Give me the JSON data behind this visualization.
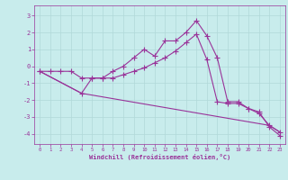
{
  "xlabel": "Windchill (Refroidissement éolien,°C)",
  "bg_color": "#c8ecec",
  "grid_color": "#aadddd",
  "line_color": "#993399",
  "xlim": [
    -0.5,
    23.5
  ],
  "ylim": [
    -4.6,
    3.6
  ],
  "yticks": [
    -4,
    -3,
    -2,
    -1,
    0,
    1,
    2,
    3
  ],
  "xticks": [
    0,
    1,
    2,
    3,
    4,
    5,
    6,
    7,
    8,
    9,
    10,
    11,
    12,
    13,
    14,
    15,
    16,
    17,
    18,
    19,
    20,
    21,
    22,
    23
  ],
  "line1_x": [
    0,
    1,
    2,
    3,
    4,
    5,
    6,
    7,
    8,
    9,
    10,
    11,
    12,
    13,
    14,
    15,
    16,
    17,
    18,
    19,
    20,
    21,
    22,
    23
  ],
  "line1_y": [
    -0.3,
    -0.3,
    -0.3,
    -0.3,
    -0.7,
    -0.7,
    -0.7,
    -0.3,
    0.0,
    0.5,
    1.0,
    0.6,
    1.5,
    1.5,
    2.0,
    2.7,
    1.8,
    0.5,
    -2.1,
    -2.1,
    -2.5,
    -2.7,
    -3.6,
    -4.1
  ],
  "line2_x": [
    0,
    4,
    5,
    6,
    7,
    8,
    9,
    10,
    11,
    12,
    13,
    14,
    15,
    16,
    17,
    18,
    19,
    20,
    21,
    22,
    23
  ],
  "line2_y": [
    -0.3,
    -1.6,
    -0.7,
    -0.7,
    -0.7,
    -0.5,
    -0.3,
    -0.1,
    0.2,
    0.5,
    0.9,
    1.4,
    1.9,
    0.4,
    -2.1,
    -2.2,
    -2.2,
    -2.5,
    -2.8,
    -3.5,
    -3.9
  ],
  "line3_x": [
    0,
    4,
    22,
    23
  ],
  "line3_y": [
    -0.3,
    -1.6,
    -3.5,
    -3.9
  ]
}
